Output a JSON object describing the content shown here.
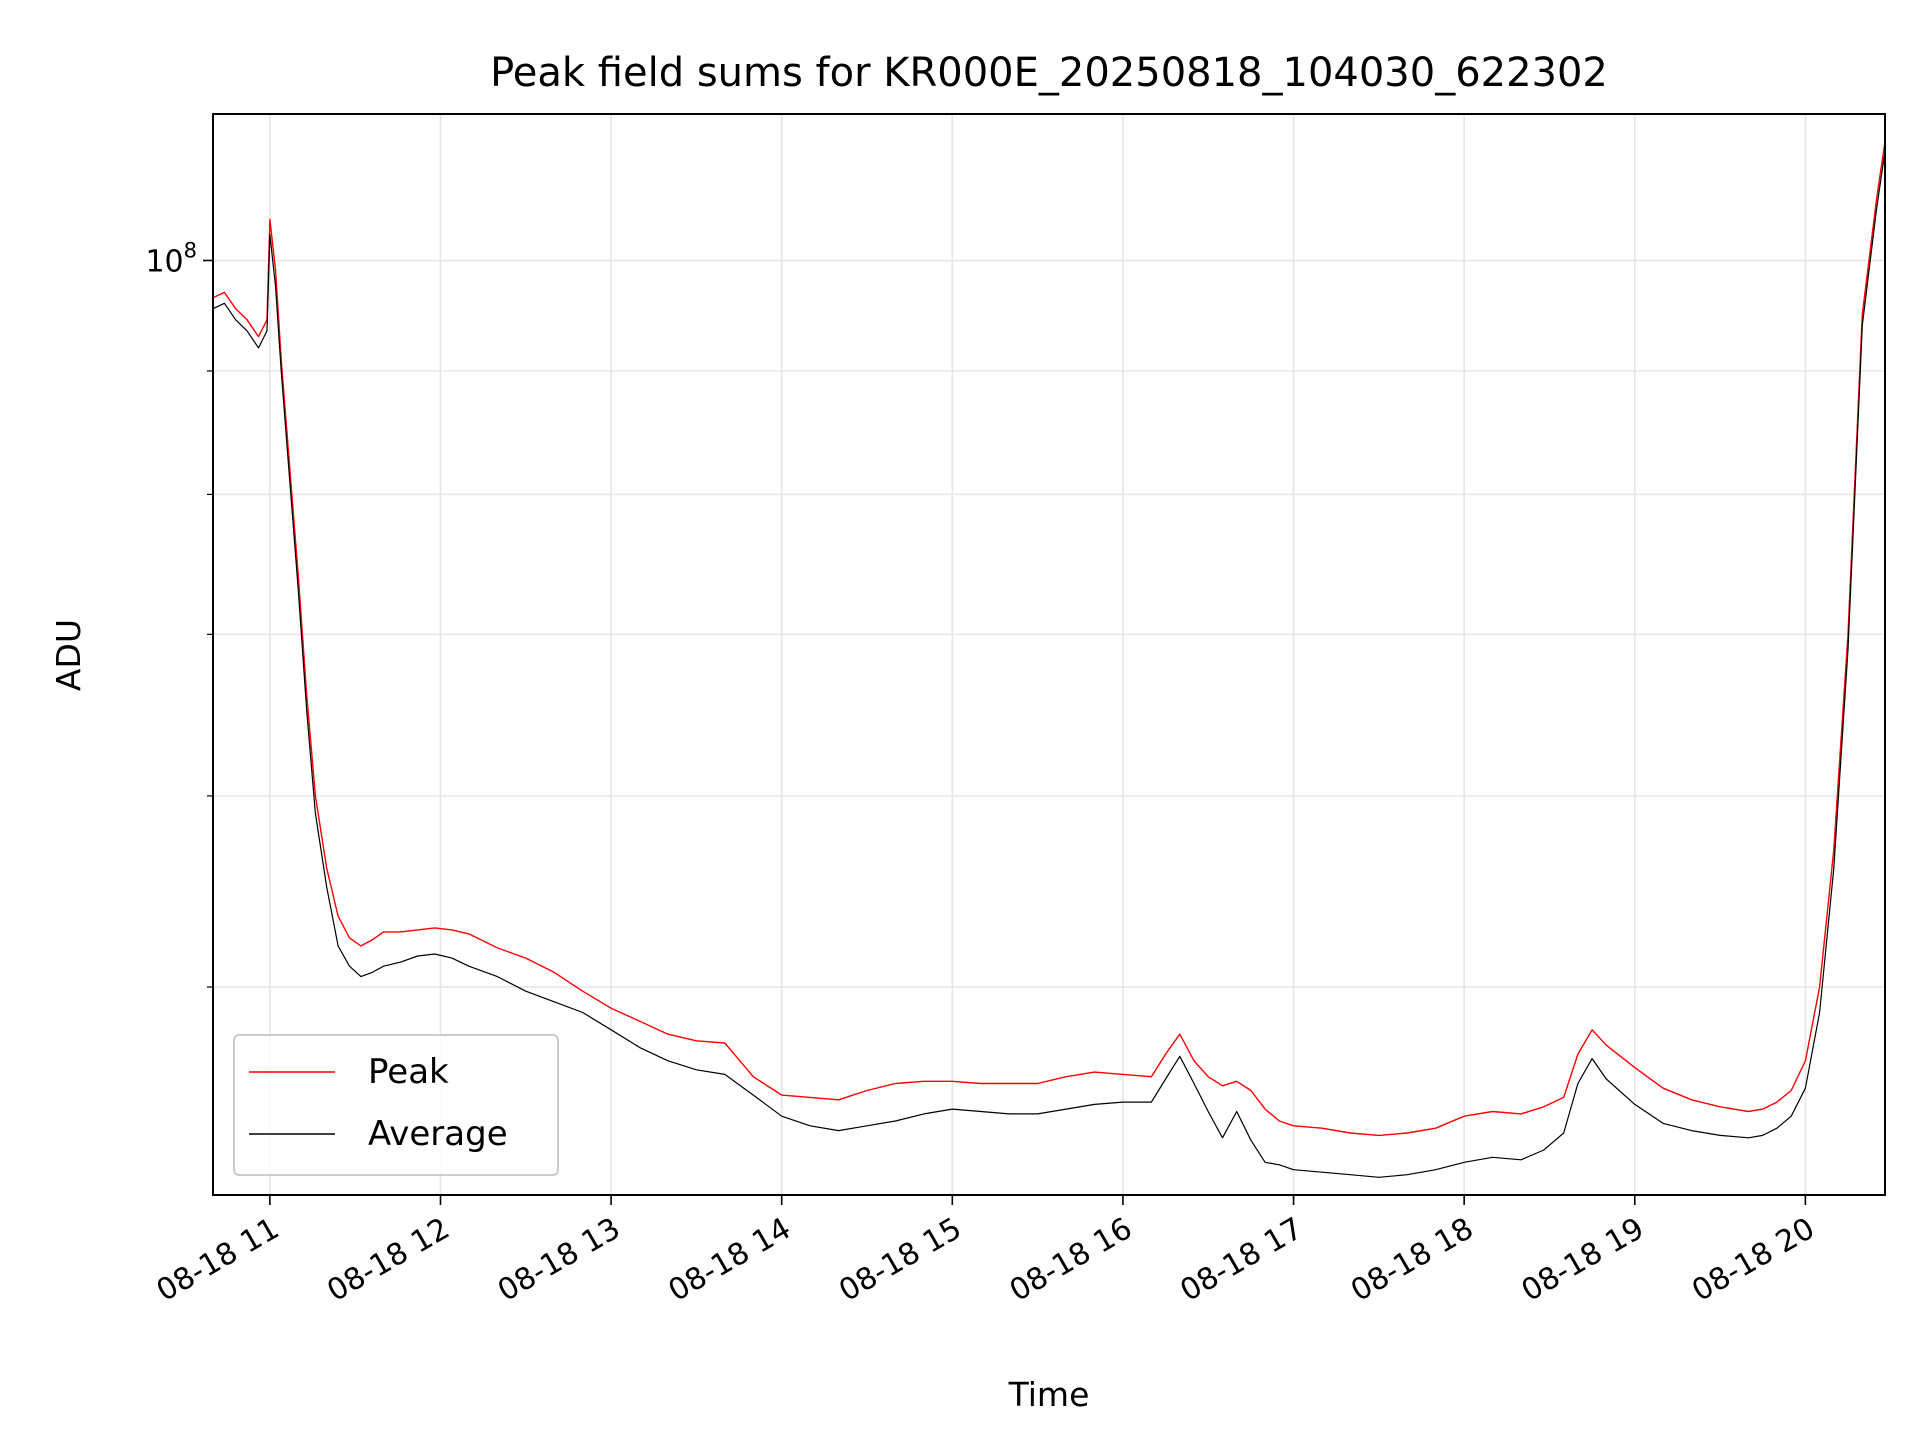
{
  "chart_data": {
    "type": "line",
    "title": "Peak field sums for KR000E_20250818_104030_622302",
    "xlabel": "Time",
    "ylabel": "ADU",
    "x_start": "2025-08-18 10:40",
    "x_end": "2025-08-18 20:28",
    "xlim": [
      "2025-08-18 10:40",
      "2025-08-18 20:28"
    ],
    "ylim": [
      41000000,
      115000000
    ],
    "yscale": "log",
    "grid": true,
    "legend_position": "lower-left",
    "x_ticks": [
      "08-18 11",
      "08-18 12",
      "08-18 13",
      "08-18 14",
      "08-18 15",
      "08-18 16",
      "08-18 17",
      "08-18 18",
      "08-18 19",
      "08-18 20"
    ],
    "y_tick_labels": [
      {
        "value": 100000000,
        "base": "10",
        "exponent": "8"
      }
    ],
    "y_minor_ticks": [
      50000000,
      60000000,
      70000000,
      80000000,
      90000000
    ],
    "x_minutes": [
      0,
      4,
      8,
      12,
      16,
      19,
      20,
      22,
      24,
      27,
      30,
      33,
      36,
      40,
      44,
      48,
      52,
      56,
      60,
      66,
      72,
      78,
      84,
      90,
      100,
      110,
      120,
      130,
      140,
      150,
      160,
      170,
      180,
      190,
      200,
      210,
      220,
      230,
      240,
      250,
      260,
      270,
      280,
      290,
      300,
      310,
      320,
      330,
      335,
      340,
      345,
      350,
      355,
      360,
      365,
      370,
      375,
      380,
      390,
      400,
      410,
      420,
      430,
      440,
      450,
      460,
      468,
      475,
      480,
      485,
      490,
      500,
      510,
      520,
      530,
      540,
      545,
      550,
      555,
      560,
      565,
      570,
      575,
      580,
      585,
      588
    ],
    "series": [
      {
        "name": "Peak",
        "color": "#ff0000",
        "stroke_width": 1.4,
        "values": [
          96500000,
          97000000,
          95500000,
          94500000,
          93000000,
          94500000,
          104000000,
          99000000,
          91000000,
          82000000,
          74000000,
          66000000,
          60000000,
          56000000,
          53500000,
          52400000,
          52000000,
          52300000,
          52700000,
          52700000,
          52800000,
          52900000,
          52800000,
          52600000,
          51900000,
          51400000,
          50700000,
          49800000,
          49000000,
          48400000,
          47800000,
          47500000,
          47400000,
          45900000,
          45100000,
          45000000,
          44900000,
          45300000,
          45600000,
          45700000,
          45700000,
          45600000,
          45600000,
          45600000,
          45900000,
          46100000,
          46000000,
          45900000,
          46900000,
          47800000,
          46600000,
          45900000,
          45500000,
          45700000,
          45300000,
          44500000,
          44000000,
          43800000,
          43700000,
          43500000,
          43400000,
          43500000,
          43700000,
          44200000,
          44400000,
          44300000,
          44600000,
          45000000,
          46900000,
          48000000,
          47300000,
          46300000,
          45400000,
          44900000,
          44600000,
          44400000,
          44500000,
          44800000,
          45300000,
          46600000,
          50000000,
          57000000,
          70000000,
          95000000,
          106000000,
          112000000
        ]
      },
      {
        "name": "Average",
        "color": "#000000",
        "stroke_width": 1.2,
        "values": [
          95500000,
          96000000,
          94500000,
          93500000,
          92000000,
          93500000,
          102500000,
          97500000,
          90000000,
          81000000,
          73000000,
          65000000,
          59000000,
          55000000,
          52000000,
          51000000,
          50500000,
          50700000,
          51000000,
          51200000,
          51500000,
          51600000,
          51400000,
          51000000,
          50500000,
          49800000,
          49300000,
          48800000,
          48000000,
          47200000,
          46600000,
          46200000,
          46000000,
          45100000,
          44200000,
          43800000,
          43600000,
          43800000,
          44000000,
          44300000,
          44500000,
          44400000,
          44300000,
          44300000,
          44500000,
          44700000,
          44800000,
          44800000,
          45800000,
          46800000,
          45600000,
          44400000,
          43300000,
          44400000,
          43200000,
          42300000,
          42200000,
          42000000,
          41900000,
          41800000,
          41700000,
          41800000,
          42000000,
          42300000,
          42500000,
          42400000,
          42800000,
          43500000,
          45600000,
          46700000,
          45800000,
          44700000,
          43900000,
          43600000,
          43400000,
          43300000,
          43400000,
          43700000,
          44200000,
          45400000,
          48800000,
          56000000,
          69000000,
          94000000,
          105000000,
          111000000
        ]
      }
    ]
  }
}
